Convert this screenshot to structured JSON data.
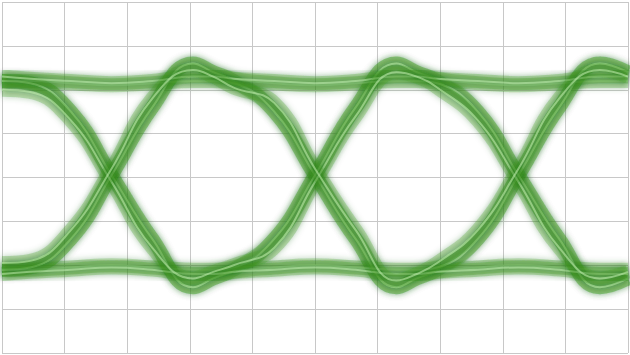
{
  "chart_data": {
    "type": "line",
    "x": [
      -5,
      -4.55,
      -3.9,
      -3.25,
      -2.6,
      -1.95,
      -1.625,
      -1.3,
      -0.65,
      0,
      0.65,
      1.3,
      1.625,
      1.95,
      2.6,
      3.25,
      3.9,
      4.55,
      5
    ],
    "series": [
      {
        "color": "#3a9e28",
        "values": [
          2.2,
          2.15,
          1.5,
          0.05,
          -1.4,
          -2.5,
          -2.3,
          -2.1,
          -1.4,
          0.05,
          1.6,
          2.6,
          2.4,
          2.2,
          1.5,
          0.05,
          -1.4,
          -2.5,
          -2.3
        ]
      },
      {
        "color": "#3a9e28",
        "values": [
          -2.1,
          -2.05,
          -1.4,
          0.05,
          1.6,
          2.6,
          2.4,
          2.2,
          1.5,
          0.05,
          -1.4,
          -2.5,
          -2.3,
          -2.1,
          -1.4,
          0.05,
          1.6,
          2.6,
          2.4
        ]
      },
      {
        "color": "#3a9e28",
        "values": [
          2.2,
          2.2,
          2.15,
          2.1,
          2.15,
          2.2,
          2.2,
          2.15,
          1.5,
          0.05,
          -1.4,
          -2.5,
          -2.3,
          -2.15,
          -2.05,
          -2.0,
          -2.05,
          -2.1,
          -2.1
        ]
      },
      {
        "color": "#3a9e28",
        "values": [
          -2.1,
          -2.1,
          -2.05,
          -2.0,
          -2.05,
          -2.1,
          -2.1,
          -2.05,
          -1.4,
          0.05,
          1.6,
          2.6,
          2.4,
          2.25,
          2.15,
          2.1,
          2.15,
          2.2,
          2.2
        ]
      },
      {
        "color": "#3a9e28",
        "values": [
          2.2,
          2.15,
          1.5,
          0.05,
          -1.4,
          -2.5,
          -2.3,
          -2.15,
          -2.05,
          -2.0,
          -2.05,
          -2.1,
          -2.1,
          -2.05,
          -1.4,
          0.05,
          1.6,
          2.6,
          2.4
        ]
      },
      {
        "color": "#3a9e28",
        "values": [
          -2.1,
          -2.05,
          -1.4,
          0.05,
          1.6,
          2.6,
          2.4,
          2.25,
          2.15,
          2.1,
          2.15,
          2.2,
          2.2,
          2.15,
          1.5,
          0.05,
          -1.4,
          -2.5,
          -2.3
        ]
      },
      {
        "color": "#3a9e28",
        "values": [
          2.3,
          2.25,
          2.2,
          2.15,
          2.2,
          2.3,
          2.3,
          2.25,
          2.2,
          2.15,
          2.2,
          2.3,
          2.3,
          2.25,
          2.2,
          2.15,
          2.2,
          2.3,
          2.3
        ]
      },
      {
        "color": "#3a9e28",
        "values": [
          -2.2,
          -2.15,
          -2.1,
          -2.05,
          -2.1,
          -2.2,
          -2.2,
          -2.15,
          -2.1,
          -2.05,
          -2.1,
          -2.2,
          -2.2,
          -2.15,
          -2.1,
          -2.05,
          -2.1,
          -2.2,
          -2.2
        ]
      },
      {
        "color": "#3a9e28",
        "values": [
          2.0,
          1.95,
          1.3,
          -0.1,
          -1.6,
          -2.3,
          -2.15,
          -2.0,
          -1.6,
          -0.1,
          1.4,
          2.4,
          2.3,
          2.05,
          1.3,
          -0.1,
          -1.6,
          -2.3,
          -2.15
        ]
      },
      {
        "color": "#3a9e28",
        "values": [
          -1.95,
          -1.9,
          -1.2,
          0.2,
          1.8,
          2.45,
          2.3,
          2.05,
          1.7,
          0.2,
          -1.2,
          -2.35,
          -2.2,
          -1.95,
          -1.2,
          0.2,
          1.8,
          2.45,
          2.3
        ]
      }
    ],
    "xlim": [
      -5,
      5
    ],
    "xticks": [
      -5,
      -4,
      -3,
      -2,
      -1,
      0,
      1,
      2,
      3,
      4,
      5
    ],
    "ylim": [
      -4,
      4
    ],
    "yticks": [
      -4,
      -3,
      -2,
      -1,
      0,
      1,
      2,
      3,
      4
    ],
    "grid": true,
    "tick_labels": false
  }
}
